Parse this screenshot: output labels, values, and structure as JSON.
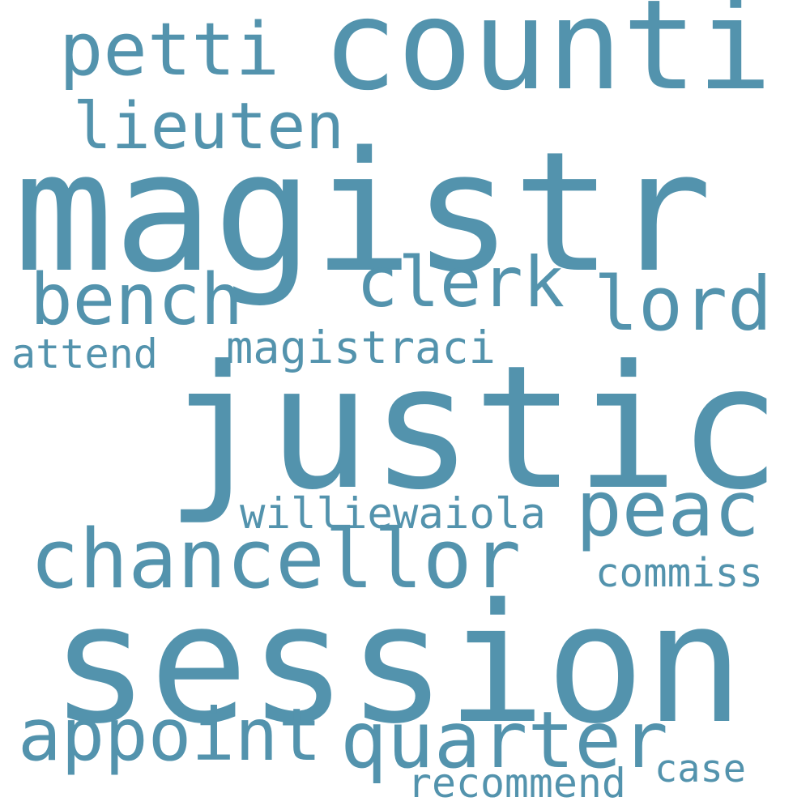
{
  "text_color": "#5393ad",
  "background_color": "#ffffff",
  "words": [
    "magistr",
    "justic",
    "session",
    "counti",
    "quarter",
    "chancellor",
    "appoint",
    "peac",
    "bench",
    "clerk",
    "lord",
    "petti",
    "lieuten",
    "magistraci",
    "williewaiola",
    "commiss",
    "recommend",
    "attend",
    "case"
  ]
}
